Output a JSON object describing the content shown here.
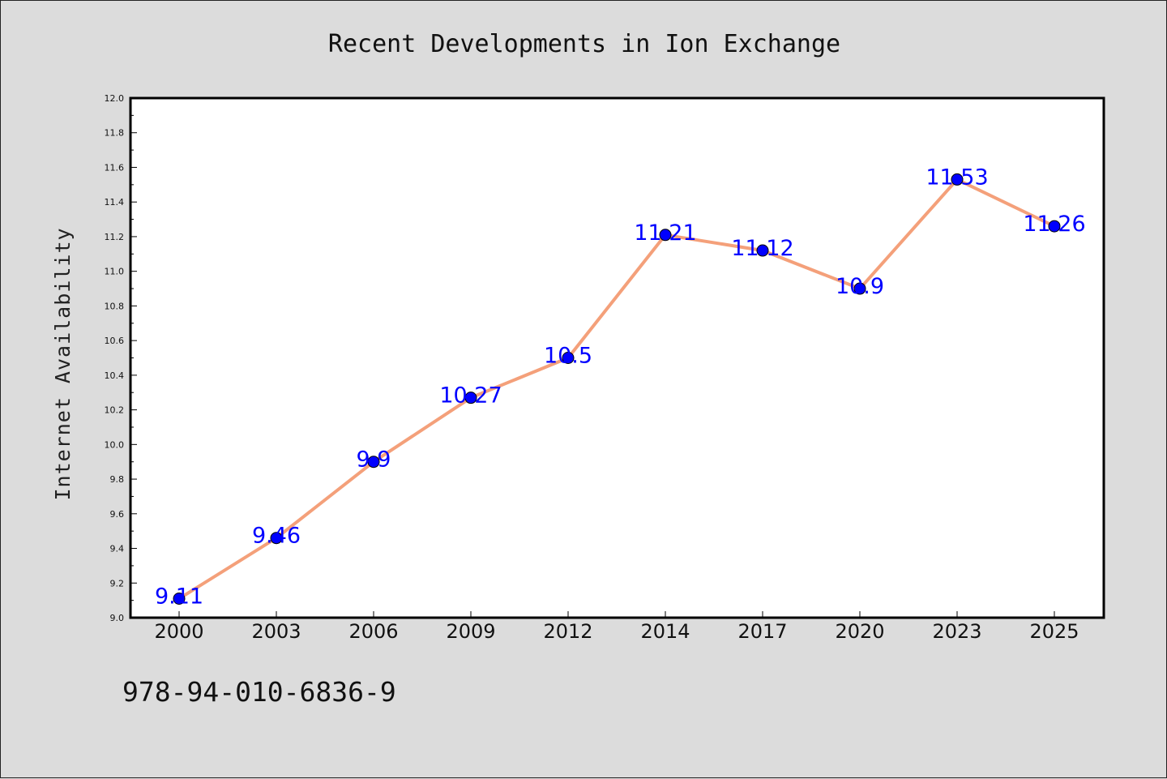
{
  "chart_data": {
    "type": "line",
    "title": "Recent Developments in Ion Exchange",
    "xlabel": "",
    "ylabel": "Internet Availability",
    "categories": [
      "2000",
      "2003",
      "2006",
      "2009",
      "2012",
      "2014",
      "2017",
      "2020",
      "2023",
      "2025"
    ],
    "values": [
      9.11,
      9.46,
      9.9,
      10.27,
      10.5,
      11.21,
      11.12,
      10.9,
      11.53,
      11.26
    ],
    "data_labels": [
      "9.11",
      "9.46",
      "9.9",
      "10.27",
      "10.5",
      "11.21",
      "11.12",
      "10.9",
      "11.53",
      "11.26"
    ],
    "ylim": [
      9.0,
      12.0
    ],
    "yticks": [
      "9.0",
      "9.2",
      "9.4",
      "9.6",
      "9.8",
      "10.0",
      "10.2",
      "10.4",
      "10.6",
      "10.8",
      "11.0",
      "11.2",
      "11.4",
      "11.6",
      "11.8",
      "12.0"
    ],
    "grid": false,
    "legend": "none",
    "colors": {
      "line": "#f4a07a",
      "marker": "#0000ff",
      "label": "#0000ff",
      "background": "#dcdcdc",
      "plot_background": "#ffffff"
    }
  },
  "footer": {
    "isbn": "978-94-010-6836-9"
  }
}
